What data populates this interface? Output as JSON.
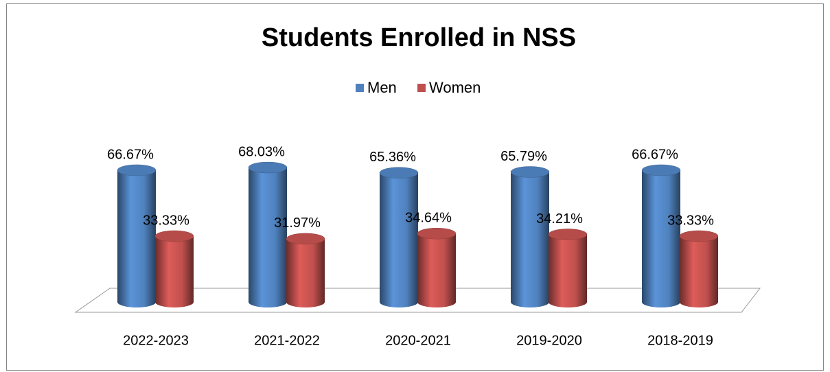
{
  "chart_data": {
    "type": "bar",
    "title": "Students Enrolled in NSS",
    "categories": [
      "2022-2023",
      "2021-2022",
      "2020-2021",
      "2019-2020",
      "2018-2019"
    ],
    "series": [
      {
        "name": "Men",
        "color": "#4f81bd",
        "values": [
          66.67,
          68.03,
          65.36,
          65.79,
          66.67
        ],
        "value_labels": [
          "66.67%",
          "68.03%",
          "65.36%",
          "65.79%",
          "66.67%"
        ]
      },
      {
        "name": "Women",
        "color": "#c0504d",
        "values": [
          33.33,
          31.97,
          34.64,
          34.21,
          33.33
        ],
        "value_labels": [
          "33.33%",
          "31.97%",
          "34.64%",
          "34.21%",
          "33.33%"
        ]
      }
    ],
    "legend": "top"
  }
}
